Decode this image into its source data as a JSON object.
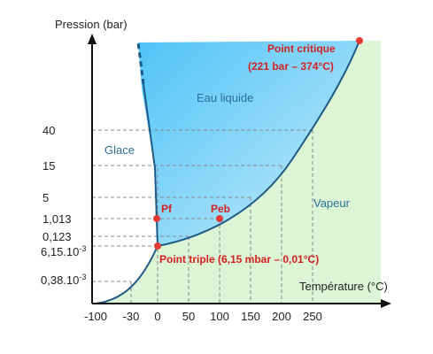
{
  "axes": {
    "ylabel": "Pression (bar)",
    "xlabel": "Température (°C)",
    "y_ticks": [
      "40",
      "15",
      "5",
      "1,013",
      "0,123",
      "6,15.10",
      "0,38.10"
    ],
    "y_tick_superscripts": [
      "",
      "",
      "",
      "",
      "",
      "-3",
      "-3"
    ],
    "x_ticks": [
      "-100",
      "-30",
      "0",
      "50",
      "100",
      "150",
      "200",
      "250"
    ]
  },
  "regions": {
    "liquid": "Eau liquide",
    "solid": "Glace",
    "vapor": "Vapeur"
  },
  "points": {
    "critical_title": "Point critique",
    "critical_values": "(221 bar – 374°C)",
    "fusion": "Pf",
    "boiling": "Peb",
    "triple": "Point triple (6,15 mbar – 0,01°C)"
  },
  "colors": {
    "liquid_fill": "#4fc3f7",
    "vapor_fill": "#dcf5d4",
    "curve": "#1e5a86",
    "point": "#e53935",
    "grid": "#888888"
  }
}
